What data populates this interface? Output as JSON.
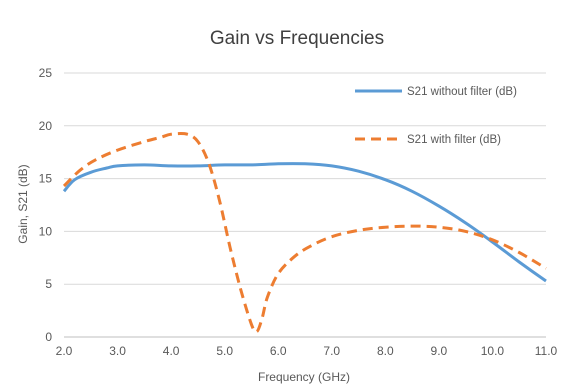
{
  "chart_data": {
    "type": "line",
    "title": "Gain vs Frequencies",
    "xlabel": "Frequency (GHz)",
    "ylabel": "Gain, S21 (dB)",
    "xlim": [
      2.0,
      11.0
    ],
    "ylim": [
      0,
      25
    ],
    "x_ticks": [
      "2.0",
      "3.0",
      "4.0",
      "5.0",
      "6.0",
      "7.0",
      "8.0",
      "9.0",
      "10.0",
      "11.0"
    ],
    "y_ticks": [
      "0",
      "5",
      "10",
      "15",
      "20",
      "25"
    ],
    "grid": "horizontal",
    "legend_position": "top-right",
    "series": [
      {
        "name": "S21 without filter (dB)",
        "color": "#5b9bd5",
        "style": "solid",
        "x": [
          2.0,
          2.2,
          2.5,
          2.8,
          3.0,
          3.5,
          4.0,
          4.5,
          5.0,
          5.5,
          6.0,
          6.5,
          7.0,
          7.5,
          8.0,
          8.5,
          9.0,
          9.5,
          10.0,
          10.5,
          11.0
        ],
        "y": [
          13.8,
          14.9,
          15.6,
          16.0,
          16.2,
          16.3,
          16.2,
          16.2,
          16.3,
          16.3,
          16.4,
          16.4,
          16.2,
          15.7,
          14.9,
          13.8,
          12.4,
          10.8,
          9.0,
          7.1,
          5.3
        ]
      },
      {
        "name": "S21 with filter (dB)",
        "color": "#ed7d31",
        "style": "dashed",
        "x": [
          2.0,
          2.3,
          2.6,
          3.0,
          3.5,
          3.8,
          4.0,
          4.3,
          4.5,
          4.7,
          4.9,
          5.1,
          5.3,
          5.5,
          5.6,
          5.7,
          5.8,
          6.0,
          6.3,
          6.6,
          7.0,
          7.5,
          8.0,
          8.5,
          9.0,
          9.5,
          10.0,
          10.5,
          11.0
        ],
        "y": [
          14.3,
          15.8,
          16.8,
          17.7,
          18.5,
          18.9,
          19.2,
          19.2,
          18.5,
          16.5,
          13.0,
          8.5,
          4.5,
          1.2,
          0.5,
          1.8,
          3.8,
          6.0,
          7.6,
          8.6,
          9.5,
          10.1,
          10.4,
          10.5,
          10.4,
          10.0,
          9.2,
          8.0,
          6.5
        ]
      }
    ]
  }
}
